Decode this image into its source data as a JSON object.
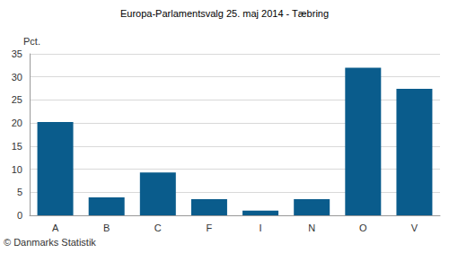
{
  "chart_data": {
    "type": "bar",
    "title": "Europa-Parlamentsvalg 25. maj 2014 - Tæbring",
    "ylabel": "Pct.",
    "annotations": [
      "© Danmarks Statistik"
    ],
    "categories": [
      "A",
      "B",
      "C",
      "F",
      "I",
      "N",
      "O",
      "V"
    ],
    "values": [
      20.2,
      3.9,
      9.3,
      3.5,
      1.0,
      3.5,
      32.0,
      27.4
    ],
    "color": "#0a5c8c",
    "ylim": [
      0,
      35
    ],
    "yticks": [
      0,
      5,
      10,
      15,
      20,
      25,
      30,
      35
    ],
    "grid": true
  }
}
